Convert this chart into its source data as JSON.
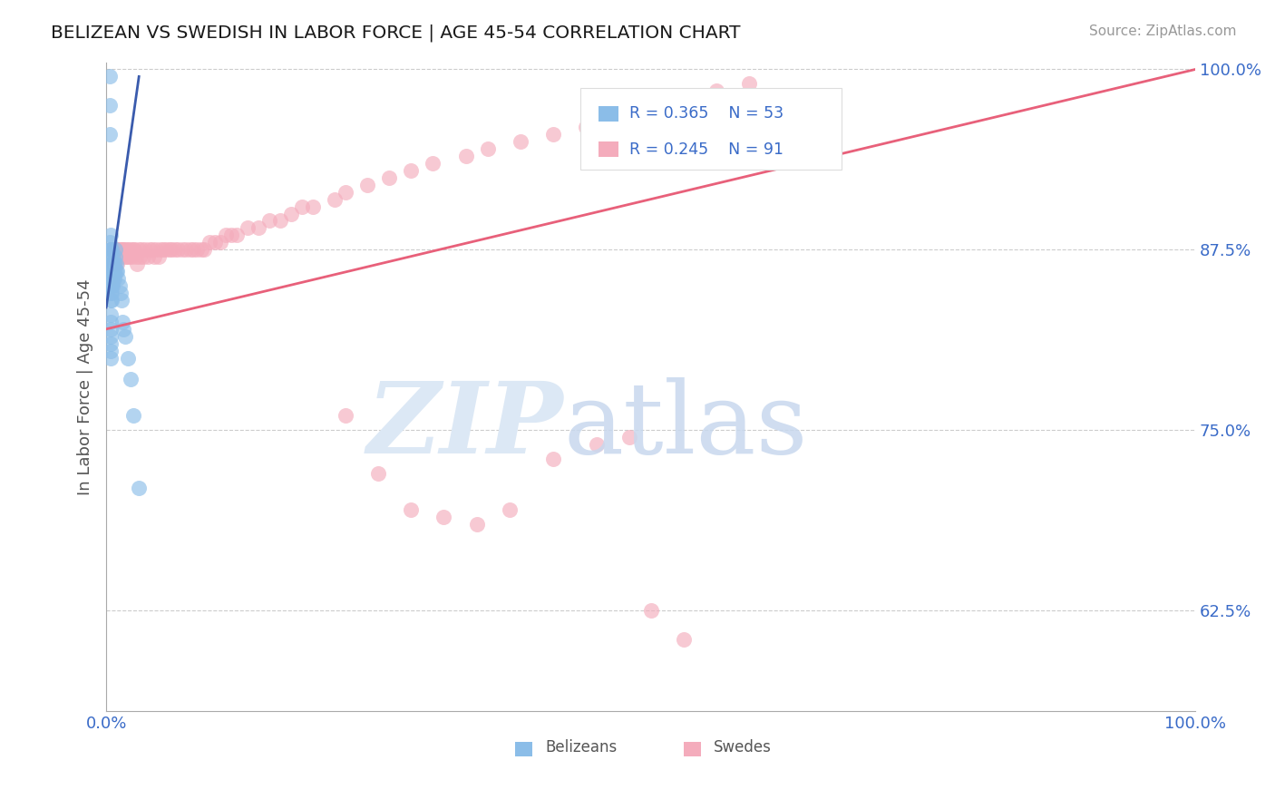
{
  "title": "BELIZEAN VS SWEDISH IN LABOR FORCE | AGE 45-54 CORRELATION CHART",
  "source_text": "Source: ZipAtlas.com",
  "ylabel": "In Labor Force | Age 45-54",
  "xlim": [
    0.0,
    1.0
  ],
  "ylim": [
    0.555,
    1.005
  ],
  "xticks": [
    0.0,
    1.0
  ],
  "xticklabels": [
    "0.0%",
    "100.0%"
  ],
  "yticks": [
    0.625,
    0.75,
    0.875,
    1.0
  ],
  "yticklabels": [
    "62.5%",
    "75.0%",
    "87.5%",
    "100.0%"
  ],
  "blue_color": "#8BBDE8",
  "pink_color": "#F4ACBC",
  "blue_line_color": "#3A5BAD",
  "pink_line_color": "#E8607A",
  "label_color": "#3A6BC8",
  "grid_color": "#CCCCCC",
  "axis_color": "#AAAAAA",
  "belizean_x": [
    0.003,
    0.003,
    0.003,
    0.003,
    0.003,
    0.003,
    0.003,
    0.003,
    0.004,
    0.004,
    0.004,
    0.004,
    0.004,
    0.004,
    0.004,
    0.004,
    0.004,
    0.004,
    0.004,
    0.004,
    0.004,
    0.004,
    0.005,
    0.005,
    0.005,
    0.005,
    0.005,
    0.005,
    0.005,
    0.006,
    0.006,
    0.006,
    0.006,
    0.006,
    0.007,
    0.007,
    0.007,
    0.008,
    0.008,
    0.009,
    0.009,
    0.01,
    0.011,
    0.012,
    0.013,
    0.014,
    0.015,
    0.016,
    0.017,
    0.02,
    0.022,
    0.025,
    0.03
  ],
  "belizean_y": [
    0.995,
    0.975,
    0.955,
    0.88,
    0.875,
    0.87,
    0.865,
    0.86,
    0.885,
    0.875,
    0.865,
    0.855,
    0.85,
    0.845,
    0.84,
    0.83,
    0.825,
    0.82,
    0.815,
    0.81,
    0.805,
    0.8,
    0.875,
    0.865,
    0.86,
    0.855,
    0.85,
    0.845,
    0.84,
    0.87,
    0.865,
    0.86,
    0.855,
    0.85,
    0.865,
    0.86,
    0.855,
    0.875,
    0.87,
    0.865,
    0.86,
    0.86,
    0.855,
    0.85,
    0.845,
    0.84,
    0.825,
    0.82,
    0.815,
    0.8,
    0.785,
    0.76,
    0.71
  ],
  "swedish_x": [
    0.003,
    0.005,
    0.005,
    0.007,
    0.007,
    0.008,
    0.009,
    0.01,
    0.01,
    0.011,
    0.012,
    0.013,
    0.014,
    0.015,
    0.016,
    0.017,
    0.018,
    0.019,
    0.02,
    0.021,
    0.022,
    0.023,
    0.025,
    0.026,
    0.027,
    0.028,
    0.03,
    0.031,
    0.032,
    0.034,
    0.036,
    0.038,
    0.04,
    0.042,
    0.044,
    0.046,
    0.048,
    0.05,
    0.052,
    0.055,
    0.058,
    0.06,
    0.063,
    0.066,
    0.07,
    0.073,
    0.077,
    0.08,
    0.083,
    0.087,
    0.09,
    0.095,
    0.1,
    0.105,
    0.11,
    0.115,
    0.12,
    0.13,
    0.14,
    0.15,
    0.16,
    0.17,
    0.18,
    0.19,
    0.21,
    0.22,
    0.24,
    0.26,
    0.28,
    0.3,
    0.33,
    0.35,
    0.38,
    0.41,
    0.44,
    0.47,
    0.5,
    0.53,
    0.56,
    0.59,
    0.22,
    0.25,
    0.28,
    0.31,
    0.34,
    0.37,
    0.41,
    0.45,
    0.48,
    0.5,
    0.53
  ],
  "swedish_y": [
    0.855,
    0.875,
    0.865,
    0.875,
    0.865,
    0.87,
    0.875,
    0.875,
    0.865,
    0.87,
    0.875,
    0.87,
    0.875,
    0.875,
    0.875,
    0.87,
    0.875,
    0.87,
    0.875,
    0.87,
    0.875,
    0.87,
    0.875,
    0.875,
    0.87,
    0.865,
    0.875,
    0.87,
    0.875,
    0.87,
    0.875,
    0.87,
    0.875,
    0.875,
    0.87,
    0.875,
    0.87,
    0.875,
    0.875,
    0.875,
    0.875,
    0.875,
    0.875,
    0.875,
    0.875,
    0.875,
    0.875,
    0.875,
    0.875,
    0.875,
    0.875,
    0.88,
    0.88,
    0.88,
    0.885,
    0.885,
    0.885,
    0.89,
    0.89,
    0.895,
    0.895,
    0.9,
    0.905,
    0.905,
    0.91,
    0.915,
    0.92,
    0.925,
    0.93,
    0.935,
    0.94,
    0.945,
    0.95,
    0.955,
    0.96,
    0.965,
    0.97,
    0.975,
    0.985,
    0.99,
    0.76,
    0.72,
    0.695,
    0.69,
    0.685,
    0.695,
    0.73,
    0.74,
    0.745,
    0.625,
    0.605
  ],
  "blue_trend_x": [
    0.0,
    0.03
  ],
  "blue_trend_y": [
    0.835,
    0.995
  ],
  "pink_trend_x": [
    0.0,
    1.0
  ],
  "pink_trend_y": [
    0.82,
    1.0
  ]
}
